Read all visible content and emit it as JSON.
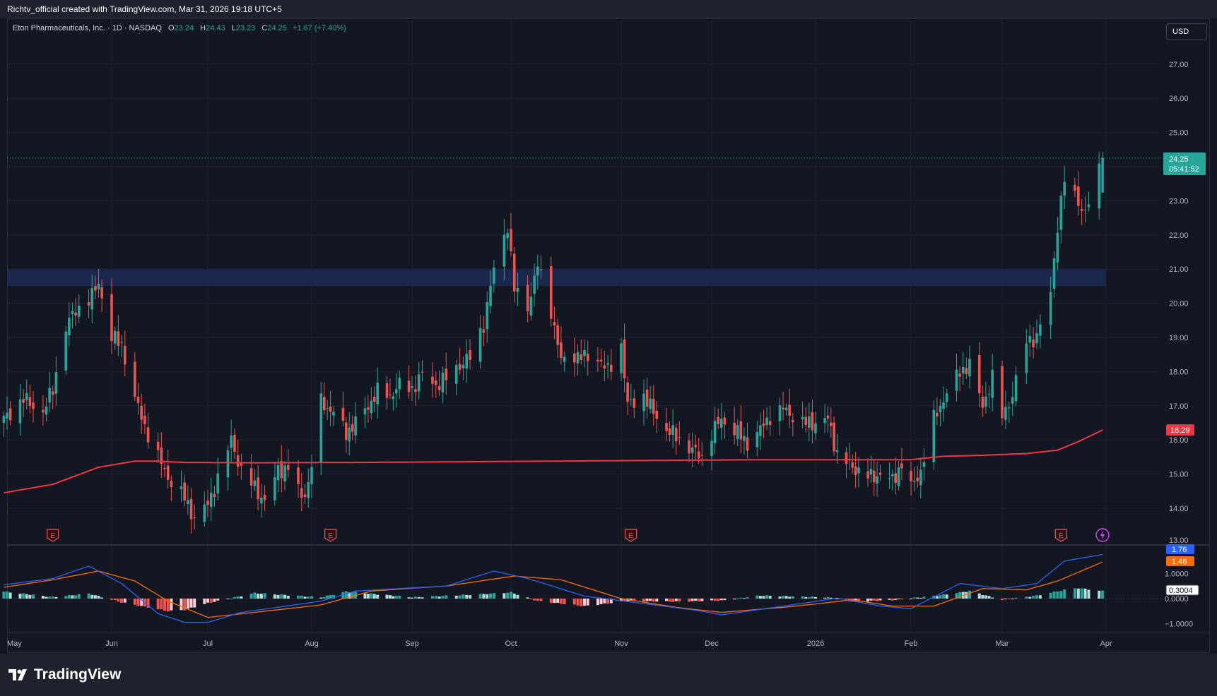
{
  "header": {
    "attribution": "Richtv_official created with TradingView.com, Mar 31, 2026 19:18 UTC+5"
  },
  "legend": {
    "symbol": "Eton Pharmaceuticals, Inc. · 1D · NASDAQ",
    "open_label": "O",
    "open": "23.24",
    "high_label": "H",
    "high": "24.43",
    "low_label": "L",
    "low": "23.23",
    "close_label": "C",
    "close": "24.25",
    "change": "+1.67 (+7.40%)"
  },
  "currency": "USD",
  "price_axis": {
    "ticks": [
      "27.00",
      "26.00",
      "25.00",
      "24.00",
      "23.00",
      "22.00",
      "21.00",
      "20.00",
      "19.00",
      "18.00",
      "17.00",
      "16.00",
      "15.00",
      "14.00",
      "13.00"
    ]
  },
  "price_tags": {
    "last_price": "24.25",
    "countdown": "05:41:52",
    "ma_value": "16.29"
  },
  "macd_axis": {
    "ticks": [
      "1.0000",
      "0.0000",
      "−1.0000"
    ]
  },
  "macd_tags": {
    "macd": "1.76",
    "signal": "1.46",
    "hist": "0.3004"
  },
  "time_axis": {
    "labels": [
      "May",
      "Jun",
      "Jul",
      "Aug",
      "Sep",
      "Oct",
      "Nov",
      "Dec",
      "2026",
      "Feb",
      "Mar",
      "Apr"
    ]
  },
  "earnings_marker": "E",
  "footer": {
    "brand": "TradingView"
  },
  "colors": {
    "up": "#26a69a",
    "down": "#ef5350",
    "ma": "#f23645",
    "macd": "#2962ff",
    "signal": "#ff6d00",
    "zone": "#1f2a55"
  },
  "chart_data": {
    "type": "candlestick",
    "title": "Eton Pharmaceuticals, Inc. · 1D · NASDAQ",
    "ylim": [
      13,
      27.6
    ],
    "resistance_zone": [
      20.5,
      21.0
    ],
    "ohlc_last": {
      "open": 23.24,
      "high": 24.43,
      "low": 23.23,
      "close": 24.25
    },
    "x_anchors": [
      {
        "date": "2025-05-01"
      },
      {
        "date": "2025-06-02"
      },
      {
        "date": "2025-07-01"
      },
      {
        "date": "2025-08-01"
      },
      {
        "date": "2025-09-02"
      },
      {
        "date": "2025-10-01"
      },
      {
        "date": "2025-11-03"
      },
      {
        "date": "2025-12-01"
      },
      {
        "date": "2026-01-02"
      },
      {
        "date": "2026-02-02"
      },
      {
        "date": "2026-03-02"
      },
      {
        "date": "2026-04-01"
      }
    ],
    "close_path": [
      [
        "2025-04-30",
        16.6
      ],
      [
        "2025-05-06",
        17.2
      ],
      [
        "2025-05-12",
        16.8
      ],
      [
        "2025-05-15",
        17.5
      ],
      [
        "2025-05-19",
        19.3
      ],
      [
        "2025-05-22",
        19.8
      ],
      [
        "2025-05-27",
        20.2
      ],
      [
        "2025-05-29",
        20.6
      ],
      [
        "2025-06-02",
        19.0
      ],
      [
        "2025-06-05",
        18.8
      ],
      [
        "2025-06-09",
        17.2
      ],
      [
        "2025-06-12",
        16.4
      ],
      [
        "2025-06-16",
        15.5
      ],
      [
        "2025-06-19",
        14.9
      ],
      [
        "2025-06-24",
        14.3
      ],
      [
        "2025-06-27",
        13.7
      ],
      [
        "2025-07-01",
        14.1
      ],
      [
        "2025-07-03",
        14.6
      ],
      [
        "2025-07-08",
        16.0
      ],
      [
        "2025-07-11",
        15.1
      ],
      [
        "2025-07-15",
        14.6
      ],
      [
        "2025-07-18",
        14.2
      ],
      [
        "2025-07-22",
        15.1
      ],
      [
        "2025-07-25",
        15.2
      ],
      [
        "2025-07-29",
        14.3
      ],
      [
        "2025-07-31",
        14.7
      ],
      [
        "2025-08-04",
        17.1
      ],
      [
        "2025-08-08",
        16.8
      ],
      [
        "2025-08-12",
        16.2
      ],
      [
        "2025-08-15",
        16.5
      ],
      [
        "2025-08-19",
        17.0
      ],
      [
        "2025-08-22",
        17.4
      ],
      [
        "2025-08-26",
        17.3
      ],
      [
        "2025-08-29",
        17.6
      ],
      [
        "2025-09-02",
        17.5
      ],
      [
        "2025-09-05",
        17.9
      ],
      [
        "2025-09-09",
        17.6
      ],
      [
        "2025-09-12",
        17.8
      ],
      [
        "2025-09-16",
        18.2
      ],
      [
        "2025-09-19",
        18.4
      ],
      [
        "2025-09-23",
        19.4
      ],
      [
        "2025-09-26",
        21.0
      ],
      [
        "2025-09-30",
        22.3
      ],
      [
        "2025-10-02",
        20.4
      ],
      [
        "2025-10-06",
        19.9
      ],
      [
        "2025-10-09",
        21.1
      ],
      [
        "2025-10-13",
        19.8
      ],
      [
        "2025-10-16",
        18.3
      ],
      [
        "2025-10-20",
        18.5
      ],
      [
        "2025-10-23",
        18.4
      ],
      [
        "2025-10-27",
        18.4
      ],
      [
        "2025-10-30",
        18.0
      ],
      [
        "2025-11-03",
        18.8
      ],
      [
        "2025-11-05",
        17.0
      ],
      [
        "2025-11-10",
        17.3
      ],
      [
        "2025-11-13",
        16.8
      ],
      [
        "2025-11-17",
        16.3
      ],
      [
        "2025-11-20",
        16.1
      ],
      [
        "2025-11-25",
        15.7
      ],
      [
        "2025-11-28",
        15.5
      ],
      [
        "2025-12-01",
        16.2
      ],
      [
        "2025-12-04",
        16.6
      ],
      [
        "2025-12-09",
        16.2
      ],
      [
        "2025-12-12",
        15.9
      ],
      [
        "2025-12-16",
        16.3
      ],
      [
        "2025-12-19",
        16.7
      ],
      [
        "2025-12-23",
        16.9
      ],
      [
        "2025-12-29",
        16.5
      ],
      [
        "2026-01-02",
        16.5
      ],
      [
        "2026-01-06",
        16.6
      ],
      [
        "2026-01-09",
        15.6
      ],
      [
        "2026-01-14",
        15.2
      ],
      [
        "2026-01-20",
        14.9
      ],
      [
        "2026-01-23",
        15.0
      ],
      [
        "2026-01-27",
        14.8
      ],
      [
        "2026-01-30",
        15.3
      ],
      [
        "2026-02-02",
        14.6
      ],
      [
        "2026-02-05",
        15.1
      ],
      [
        "2026-02-09",
        16.6
      ],
      [
        "2026-02-12",
        17.2
      ],
      [
        "2026-02-17",
        18.0
      ],
      [
        "2026-02-20",
        18.2
      ],
      [
        "2026-02-24",
        17.0
      ],
      [
        "2026-02-27",
        17.8
      ],
      [
        "2026-03-02",
        16.7
      ],
      [
        "2026-03-05",
        17.3
      ],
      [
        "2026-03-09",
        18.9
      ],
      [
        "2026-03-12",
        19.0
      ],
      [
        "2026-03-16",
        20.3
      ],
      [
        "2026-03-18",
        22.3
      ],
      [
        "2026-03-20",
        23.6
      ],
      [
        "2026-03-24",
        23.0
      ],
      [
        "2026-03-26",
        22.6
      ],
      [
        "2026-03-31",
        24.25
      ]
    ],
    "ma_path": [
      [
        "2025-04-30",
        14.45
      ],
      [
        "2025-05-15",
        14.7
      ],
      [
        "2025-05-29",
        15.2
      ],
      [
        "2025-06-09",
        15.38
      ],
      [
        "2025-06-16",
        15.38
      ],
      [
        "2025-06-24",
        15.34
      ],
      [
        "2025-07-15",
        15.33
      ],
      [
        "2025-08-15",
        15.34
      ],
      [
        "2025-09-15",
        15.36
      ],
      [
        "2025-10-15",
        15.38
      ],
      [
        "2025-11-15",
        15.4
      ],
      [
        "2025-12-15",
        15.42
      ],
      [
        "2026-01-15",
        15.42
      ],
      [
        "2026-02-02",
        15.42
      ],
      [
        "2026-02-12",
        15.52
      ],
      [
        "2026-02-24",
        15.55
      ],
      [
        "2026-03-09",
        15.6
      ],
      [
        "2026-03-18",
        15.7
      ],
      [
        "2026-03-24",
        15.95
      ],
      [
        "2026-03-31",
        16.29
      ]
    ],
    "macd": [
      [
        "2025-04-30",
        0.55
      ],
      [
        "2025-05-15",
        0.8
      ],
      [
        "2025-05-26",
        1.3
      ],
      [
        "2025-06-05",
        0.6
      ],
      [
        "2025-06-16",
        -0.6
      ],
      [
        "2025-06-24",
        -0.95
      ],
      [
        "2025-07-01",
        -0.95
      ],
      [
        "2025-07-11",
        -0.55
      ],
      [
        "2025-08-04",
        -0.1
      ],
      [
        "2025-08-15",
        0.3
      ],
      [
        "2025-09-12",
        0.5
      ],
      [
        "2025-09-26",
        1.1
      ],
      [
        "2025-10-06",
        0.8
      ],
      [
        "2025-10-23",
        0.1
      ],
      [
        "2025-11-10",
        -0.2
      ],
      [
        "2025-11-28",
        -0.5
      ],
      [
        "2025-12-04",
        -0.65
      ],
      [
        "2025-12-23",
        -0.3
      ],
      [
        "2026-01-09",
        0.02
      ],
      [
        "2026-01-23",
        -0.3
      ],
      [
        "2026-02-02",
        -0.4
      ],
      [
        "2026-02-17",
        0.6
      ],
      [
        "2026-03-02",
        0.4
      ],
      [
        "2026-03-12",
        0.6
      ],
      [
        "2026-03-20",
        1.5
      ],
      [
        "2026-03-31",
        1.76
      ]
    ],
    "signal": [
      [
        "2025-04-30",
        0.45
      ],
      [
        "2025-05-15",
        0.75
      ],
      [
        "2025-05-29",
        1.1
      ],
      [
        "2025-06-09",
        0.7
      ],
      [
        "2025-06-19",
        -0.1
      ],
      [
        "2025-07-01",
        -0.75
      ],
      [
        "2025-07-15",
        -0.55
      ],
      [
        "2025-08-04",
        -0.25
      ],
      [
        "2025-08-20",
        0.3
      ],
      [
        "2025-09-12",
        0.5
      ],
      [
        "2025-10-02",
        0.9
      ],
      [
        "2025-10-16",
        0.75
      ],
      [
        "2025-11-03",
        0.0
      ],
      [
        "2025-11-20",
        -0.35
      ],
      [
        "2025-12-04",
        -0.55
      ],
      [
        "2025-12-23",
        -0.35
      ],
      [
        "2026-01-14",
        -0.05
      ],
      [
        "2026-01-27",
        -0.3
      ],
      [
        "2026-02-09",
        -0.3
      ],
      [
        "2026-02-24",
        0.4
      ],
      [
        "2026-03-09",
        0.35
      ],
      [
        "2026-03-18",
        0.7
      ],
      [
        "2026-03-31",
        1.46
      ]
    ],
    "histogram_path": [
      [
        "2025-04-30",
        0.28
      ],
      [
        "2025-05-15",
        0.06
      ],
      [
        "2025-05-26",
        0.2
      ],
      [
        "2025-06-05",
        -0.15
      ],
      [
        "2025-06-19",
        -0.5
      ],
      [
        "2025-06-24",
        -0.45
      ],
      [
        "2025-07-01",
        -0.18
      ],
      [
        "2025-07-15",
        0.22
      ],
      [
        "2025-08-04",
        0.05
      ],
      [
        "2025-08-12",
        0.28
      ],
      [
        "2025-09-02",
        0.05
      ],
      [
        "2025-09-23",
        0.18
      ],
      [
        "2025-10-01",
        0.25
      ],
      [
        "2025-10-09",
        -0.1
      ],
      [
        "2025-10-23",
        -0.3
      ],
      [
        "2025-11-05",
        -0.1
      ],
      [
        "2025-11-20",
        -0.12
      ],
      [
        "2025-12-04",
        -0.08
      ],
      [
        "2025-12-16",
        0.12
      ],
      [
        "2026-01-06",
        0.05
      ],
      [
        "2026-01-14",
        -0.12
      ],
      [
        "2026-01-27",
        -0.06
      ],
      [
        "2026-02-09",
        0.1
      ],
      [
        "2026-02-20",
        0.3
      ],
      [
        "2026-03-02",
        -0.05
      ],
      [
        "2026-03-12",
        0.12
      ],
      [
        "2026-03-20",
        0.35
      ],
      [
        "2026-03-24",
        0.42
      ],
      [
        "2026-03-31",
        0.3
      ]
    ],
    "earnings_dates": [
      "2025-05-15",
      "2025-08-07",
      "2025-11-06",
      "2026-03-19"
    ]
  }
}
